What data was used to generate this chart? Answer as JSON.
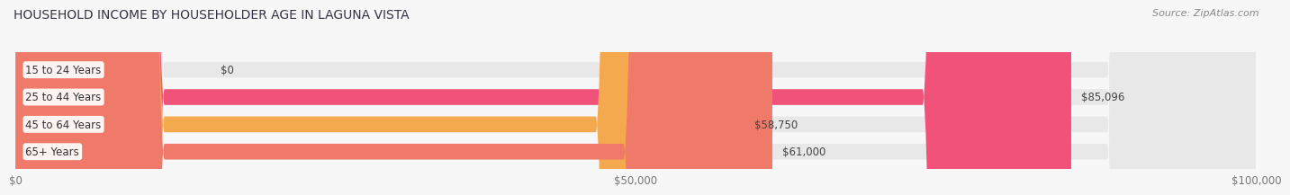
{
  "title": "HOUSEHOLD INCOME BY HOUSEHOLDER AGE IN LAGUNA VISTA",
  "source": "Source: ZipAtlas.com",
  "categories": [
    "15 to 24 Years",
    "25 to 44 Years",
    "45 to 64 Years",
    "65+ Years"
  ],
  "values": [
    0,
    85096,
    58750,
    61000
  ],
  "bar_colors": [
    "#aaaacc",
    "#f0527a",
    "#f5a94e",
    "#f07a6a"
  ],
  "value_labels": [
    "$0",
    "$85,096",
    "$58,750",
    "$61,000"
  ],
  "xlim": [
    0,
    100000
  ],
  "xticks": [
    0,
    50000,
    100000
  ],
  "xticklabels": [
    "$0",
    "$50,000",
    "$100,000"
  ],
  "background_color": "#f7f7f7",
  "bar_bg_color": "#e8e8e8",
  "bar_height": 0.58
}
